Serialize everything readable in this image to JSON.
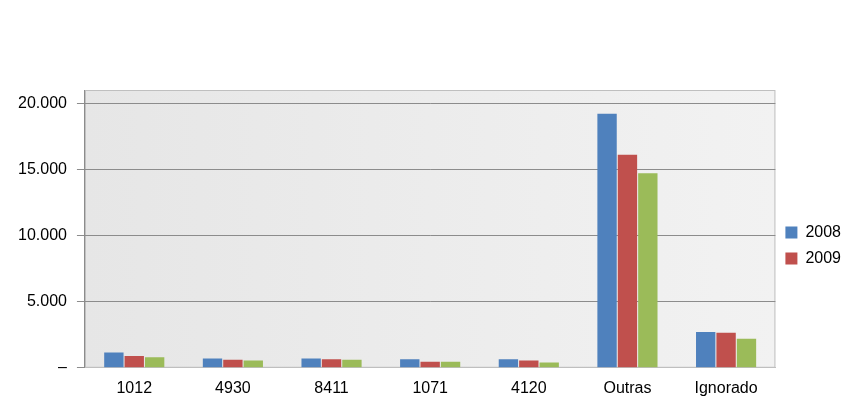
{
  "chart_data": {
    "type": "bar",
    "categories": [
      "1012",
      "4930",
      "8411",
      "1071",
      "4120",
      "Outras",
      "Ignorado"
    ],
    "series": [
      {
        "name": "2008",
        "color": "#4f81bd",
        "values": [
          1150,
          700,
          700,
          650,
          650,
          19200,
          2700
        ]
      },
      {
        "name": "2009",
        "color": "#c0504d",
        "values": [
          900,
          600,
          650,
          450,
          550,
          16100,
          2650
        ]
      },
      {
        "color": "#9bbb59",
        "values": [
          800,
          550,
          600,
          450,
          400,
          14700,
          2200
        ]
      }
    ],
    "ylim": [
      0,
      21000
    ],
    "yticks": [
      {
        "value": 0,
        "label": "–"
      },
      {
        "value": 5000,
        "label": "5.000"
      },
      {
        "value": 10000,
        "label": "10.000"
      },
      {
        "value": 15000,
        "label": "15.000"
      },
      {
        "value": 20000,
        "label": "20.000"
      }
    ],
    "grid": true,
    "legend": "right"
  }
}
